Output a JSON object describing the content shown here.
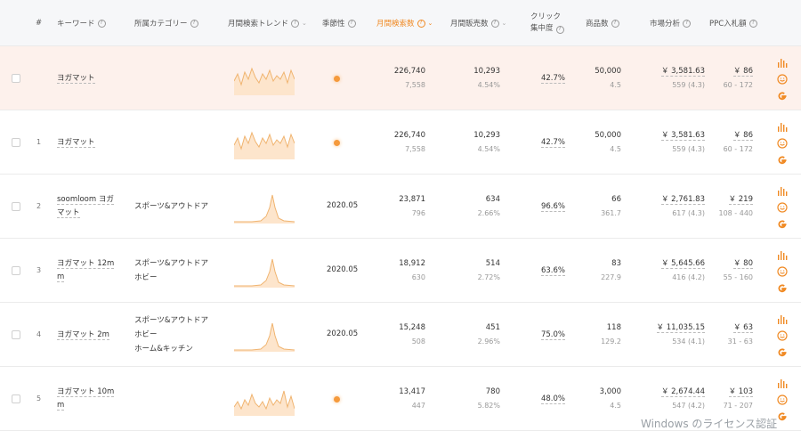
{
  "header": {
    "index": "#",
    "keyword": "キーワード",
    "category": "所属カテゴリー",
    "trend": "月間検索トレンド",
    "season": "季節性",
    "monthly_search": "月間検索数",
    "monthly_sales": "月間販売数",
    "click_line1": "クリック",
    "click_line2": "集中度",
    "products": "商品数",
    "market": "市場分析",
    "ppc": "PPC入札額"
  },
  "rows": [
    {
      "idx": "",
      "kw1": "ヨガマット",
      "kw2": "",
      "cat": [],
      "trend": "multi-a",
      "season": "",
      "search": "226,740",
      "search_sub": "7,558",
      "sales": "10,293",
      "sales_sub": "4.54%",
      "click": "42.7%",
      "products": "50,000",
      "products_sub": "4.5",
      "market": "￥ 3,581.63",
      "market_sub": "559 (4.3)",
      "ppc": "￥ 86",
      "ppc_sub": "60 - 172"
    },
    {
      "idx": "1",
      "kw1": "ヨガマット",
      "kw2": "",
      "cat": [],
      "trend": "multi-a",
      "season": "",
      "search": "226,740",
      "search_sub": "7,558",
      "sales": "10,293",
      "sales_sub": "4.54%",
      "click": "42.7%",
      "products": "50,000",
      "products_sub": "4.5",
      "market": "￥ 3,581.63",
      "market_sub": "559 (4.3)",
      "ppc": "￥ 86",
      "ppc_sub": "60 - 172"
    },
    {
      "idx": "2",
      "kw1": "soomloom ヨガ",
      "kw2": "マット",
      "cat": [
        "スポーツ&アウトドア"
      ],
      "trend": "spike",
      "season": "2020.05",
      "search": "23,871",
      "search_sub": "796",
      "sales": "634",
      "sales_sub": "2.66%",
      "click": "96.6%",
      "products": "66",
      "products_sub": "361.7",
      "market": "￥ 2,761.83",
      "market_sub": "617 (4.3)",
      "ppc": "￥ 219",
      "ppc_sub": "108 - 440"
    },
    {
      "idx": "3",
      "kw1": "ヨガマット 12m",
      "kw2": "m",
      "cat": [
        "スポーツ&アウトドア",
        "ホビー"
      ],
      "trend": "spike",
      "season": "2020.05",
      "search": "18,912",
      "search_sub": "630",
      "sales": "514",
      "sales_sub": "2.72%",
      "click": "63.6%",
      "products": "83",
      "products_sub": "227.9",
      "market": "￥ 5,645.66",
      "market_sub": "416 (4.2)",
      "ppc": "￥ 80",
      "ppc_sub": "55 - 160"
    },
    {
      "idx": "4",
      "kw1": "ヨガマット 2m",
      "kw2": "",
      "cat": [
        "スポーツ&アウトドア",
        "ホビー",
        "ホーム&キッチン"
      ],
      "trend": "spike",
      "season": "2020.05",
      "search": "15,248",
      "search_sub": "508",
      "sales": "451",
      "sales_sub": "2.96%",
      "click": "75.0%",
      "products": "118",
      "products_sub": "129.2",
      "market": "￥ 11,035.15",
      "market_sub": "534 (4.1)",
      "ppc": "￥ 63",
      "ppc_sub": "31 - 63"
    },
    {
      "idx": "5",
      "kw1": "ヨガマット 10m",
      "kw2": "m",
      "cat": [],
      "trend": "multi-b",
      "season": "",
      "search": "13,417",
      "search_sub": "447",
      "sales": "780",
      "sales_sub": "5.82%",
      "click": "48.0%",
      "products": "3,000",
      "products_sub": "4.5",
      "market": "￥ 2,674.44",
      "market_sub": "547 (4.2)",
      "ppc": "￥ 103",
      "ppc_sub": "71 - 207"
    }
  ],
  "watermark": "Windows のライセンス認証",
  "colors": {
    "accent": "#f08a24",
    "highlight_row": "#fdf1ec",
    "spark_line": "#f0b470",
    "spark_fill": "#fde5cc"
  },
  "row_icons": [
    "bar-chart-icon",
    "amazon-icon",
    "google-icon"
  ]
}
